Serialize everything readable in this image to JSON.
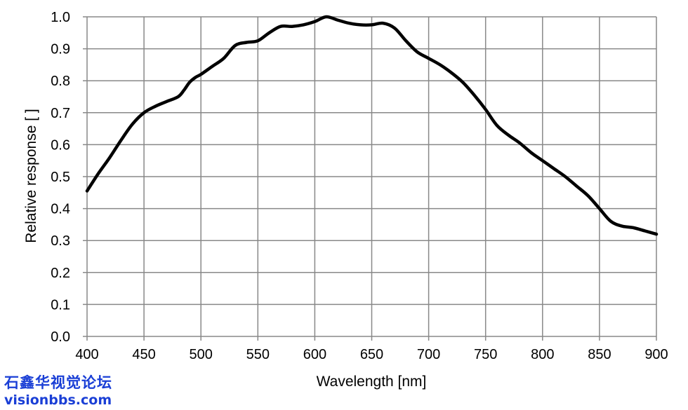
{
  "chart_data": {
    "type": "line",
    "xlabel": "Wavelength [nm]",
    "ylabel": "Relative response [ ]",
    "xlim": [
      400,
      900
    ],
    "ylim": [
      0.0,
      1.0
    ],
    "x_ticks": [
      "400",
      "450",
      "500",
      "550",
      "600",
      "650",
      "700",
      "750",
      "800",
      "850",
      "900"
    ],
    "y_ticks": [
      "0.0",
      "0.1",
      "0.2",
      "0.3",
      "0.4",
      "0.5",
      "0.6",
      "0.7",
      "0.8",
      "0.9",
      "1.0"
    ],
    "grid": true,
    "line_color": "#000000",
    "grid_color": "#888888",
    "series": [
      {
        "x": [
          400,
          410,
          420,
          430,
          440,
          450,
          460,
          470,
          480,
          485,
          490,
          495,
          500,
          510,
          520,
          530,
          540,
          550,
          560,
          570,
          580,
          590,
          600,
          610,
          620,
          630,
          640,
          650,
          660,
          670,
          680,
          690,
          700,
          710,
          720,
          730,
          740,
          750,
          760,
          770,
          780,
          790,
          800,
          810,
          820,
          830,
          840,
          850,
          860,
          870,
          880,
          890,
          900
        ],
        "values": [
          0.455,
          0.51,
          0.56,
          0.615,
          0.665,
          0.7,
          0.72,
          0.735,
          0.75,
          0.77,
          0.795,
          0.81,
          0.82,
          0.845,
          0.87,
          0.91,
          0.92,
          0.925,
          0.95,
          0.97,
          0.97,
          0.975,
          0.985,
          1.0,
          0.99,
          0.98,
          0.975,
          0.975,
          0.98,
          0.965,
          0.925,
          0.89,
          0.87,
          0.85,
          0.825,
          0.795,
          0.755,
          0.71,
          0.66,
          0.63,
          0.605,
          0.575,
          0.55,
          0.525,
          0.5,
          0.47,
          0.44,
          0.4,
          0.36,
          0.345,
          0.34,
          0.33,
          0.32
        ]
      }
    ]
  },
  "watermark": {
    "line1": "石鑫华视觉论坛",
    "line2": "visionbbs.com"
  }
}
